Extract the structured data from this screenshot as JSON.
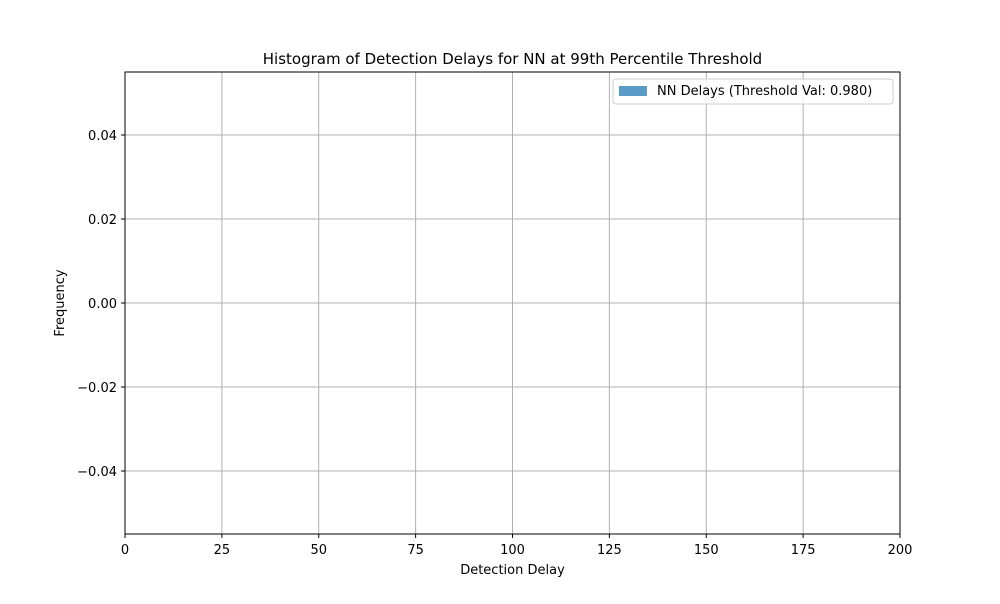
{
  "chart_data": {
    "type": "bar",
    "title": "Histogram of Detection Delays for NN at 99th Percentile Threshold",
    "xlabel": "Detection Delay",
    "ylabel": "Frequency",
    "xlim": [
      0,
      200
    ],
    "ylim": [
      -0.055,
      0.055
    ],
    "x_ticks": [
      0,
      25,
      50,
      75,
      100,
      125,
      150,
      175,
      200
    ],
    "x_tick_labels": [
      "0",
      "25",
      "50",
      "75",
      "100",
      "125",
      "150",
      "175",
      "200"
    ],
    "y_ticks": [
      -0.04,
      -0.02,
      0.0,
      0.02,
      0.04
    ],
    "y_tick_labels": [
      "−0.04",
      "−0.02",
      "0.00",
      "0.02",
      "0.04"
    ],
    "grid": true,
    "legend_position": "top-right",
    "series": [
      {
        "name": "NN Delays (Threshold Val: 0.980)",
        "color": "#5b9bc8",
        "values": []
      }
    ]
  }
}
